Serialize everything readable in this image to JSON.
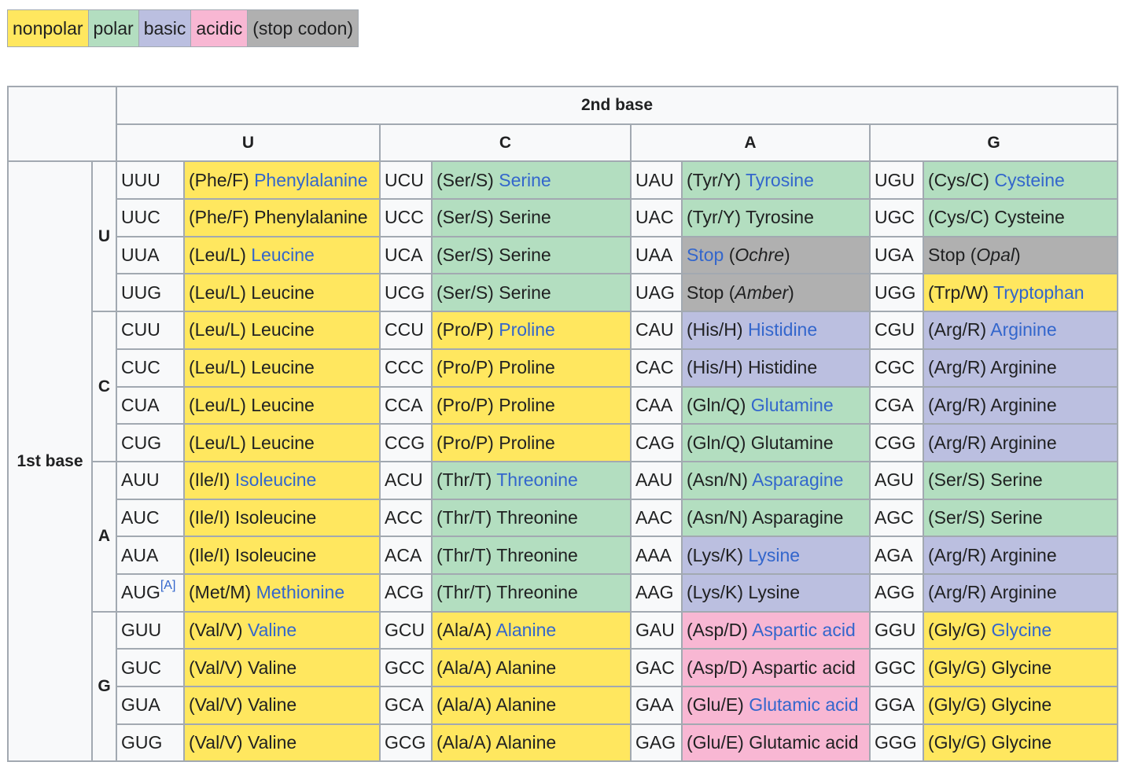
{
  "colors": {
    "nonpolar": "#ffe75f",
    "polar": "#b3dec0",
    "basic": "#bbbfe0",
    "acidic": "#f8b7d3",
    "stop": "#b0b0b0",
    "header_bg": "#f8f9fa",
    "border": "#a2a9b1",
    "link": "#3366cc"
  },
  "legend": [
    {
      "label": "nonpolar",
      "class": "nonpolar"
    },
    {
      "label": "polar",
      "class": "polar"
    },
    {
      "label": "basic",
      "class": "basic"
    },
    {
      "label": "acidic",
      "class": "acidic"
    },
    {
      "label": "(stop codon)",
      "class": "stop"
    }
  ],
  "table": {
    "second_base_label": "2nd base",
    "first_base_label": "1st base",
    "second_bases": [
      "U",
      "C",
      "A",
      "G"
    ],
    "first_bases": [
      "U",
      "C",
      "A",
      "G"
    ],
    "rows": [
      [
        [
          "UUU",
          "(Phe/F) ",
          "Phenylalanine",
          true,
          "nonpolar"
        ],
        [
          "UCU",
          "(Ser/S) ",
          "Serine",
          true,
          "polar"
        ],
        [
          "UAU",
          "(Tyr/Y) ",
          "Tyrosine",
          true,
          "polar"
        ],
        [
          "UGU",
          "(Cys/C) ",
          "Cysteine",
          true,
          "polar"
        ]
      ],
      [
        [
          "UUC",
          "(Phe/F) ",
          "Phenylalanine",
          false,
          "nonpolar"
        ],
        [
          "UCC",
          "(Ser/S) ",
          "Serine",
          false,
          "polar"
        ],
        [
          "UAC",
          "(Tyr/Y) ",
          "Tyrosine",
          false,
          "polar"
        ],
        [
          "UGC",
          "(Cys/C) ",
          "Cysteine",
          false,
          "polar"
        ]
      ],
      [
        [
          "UUA",
          "(Leu/L) ",
          "Leucine",
          true,
          "nonpolar"
        ],
        [
          "UCA",
          "(Ser/S) ",
          "Serine",
          false,
          "polar"
        ],
        [
          "UAA",
          "",
          "Stop",
          true,
          "stop",
          "Ochre"
        ],
        [
          "UGA",
          "",
          "Stop",
          false,
          "stop",
          "Opal"
        ]
      ],
      [
        [
          "UUG",
          "(Leu/L) ",
          "Leucine",
          false,
          "nonpolar"
        ],
        [
          "UCG",
          "(Ser/S) ",
          "Serine",
          false,
          "polar"
        ],
        [
          "UAG",
          "",
          "Stop",
          false,
          "stop",
          "Amber"
        ],
        [
          "UGG",
          "(Trp/W) ",
          "Tryptophan",
          true,
          "nonpolar"
        ]
      ],
      [
        [
          "CUU",
          "(Leu/L) ",
          "Leucine",
          false,
          "nonpolar"
        ],
        [
          "CCU",
          "(Pro/P) ",
          "Proline",
          true,
          "nonpolar"
        ],
        [
          "CAU",
          "(His/H) ",
          "Histidine",
          true,
          "basic"
        ],
        [
          "CGU",
          "(Arg/R) ",
          "Arginine",
          true,
          "basic"
        ]
      ],
      [
        [
          "CUC",
          "(Leu/L) ",
          "Leucine",
          false,
          "nonpolar"
        ],
        [
          "CCC",
          "(Pro/P) ",
          "Proline",
          false,
          "nonpolar"
        ],
        [
          "CAC",
          "(His/H) ",
          "Histidine",
          false,
          "basic"
        ],
        [
          "CGC",
          "(Arg/R) ",
          "Arginine",
          false,
          "basic"
        ]
      ],
      [
        [
          "CUA",
          "(Leu/L) ",
          "Leucine",
          false,
          "nonpolar"
        ],
        [
          "CCA",
          "(Pro/P) ",
          "Proline",
          false,
          "nonpolar"
        ],
        [
          "CAA",
          "(Gln/Q) ",
          "Glutamine",
          true,
          "polar"
        ],
        [
          "CGA",
          "(Arg/R) ",
          "Arginine",
          false,
          "basic"
        ]
      ],
      [
        [
          "CUG",
          "(Leu/L) ",
          "Leucine",
          false,
          "nonpolar"
        ],
        [
          "CCG",
          "(Pro/P) ",
          "Proline",
          false,
          "nonpolar"
        ],
        [
          "CAG",
          "(Gln/Q) ",
          "Glutamine",
          false,
          "polar"
        ],
        [
          "CGG",
          "(Arg/R) ",
          "Arginine",
          false,
          "basic"
        ]
      ],
      [
        [
          "AUU",
          "(Ile/I) ",
          "Isoleucine",
          true,
          "nonpolar"
        ],
        [
          "ACU",
          "(Thr/T) ",
          "Threonine",
          true,
          "polar"
        ],
        [
          "AAU",
          "(Asn/N) ",
          "Asparagine",
          true,
          "polar"
        ],
        [
          "AGU",
          "(Ser/S) ",
          "Serine",
          false,
          "polar"
        ]
      ],
      [
        [
          "AUC",
          "(Ile/I) ",
          "Isoleucine",
          false,
          "nonpolar"
        ],
        [
          "ACC",
          "(Thr/T) ",
          "Threonine",
          false,
          "polar"
        ],
        [
          "AAC",
          "(Asn/N) ",
          "Asparagine",
          false,
          "polar"
        ],
        [
          "AGC",
          "(Ser/S) ",
          "Serine",
          false,
          "polar"
        ]
      ],
      [
        [
          "AUA",
          "(Ile/I) ",
          "Isoleucine",
          false,
          "nonpolar"
        ],
        [
          "ACA",
          "(Thr/T) ",
          "Threonine",
          false,
          "polar"
        ],
        [
          "AAA",
          "(Lys/K) ",
          "Lysine",
          true,
          "basic"
        ],
        [
          "AGA",
          "(Arg/R) ",
          "Arginine",
          false,
          "basic"
        ]
      ],
      [
        [
          "AUG",
          "(Met/M) ",
          "Methionine",
          true,
          "nonpolar",
          null,
          "[A]"
        ],
        [
          "ACG",
          "(Thr/T) ",
          "Threonine",
          false,
          "polar"
        ],
        [
          "AAG",
          "(Lys/K) ",
          "Lysine",
          false,
          "basic"
        ],
        [
          "AGG",
          "(Arg/R) ",
          "Arginine",
          false,
          "basic"
        ]
      ],
      [
        [
          "GUU",
          "(Val/V) ",
          "Valine",
          true,
          "nonpolar"
        ],
        [
          "GCU",
          "(Ala/A) ",
          "Alanine",
          true,
          "nonpolar"
        ],
        [
          "GAU",
          "(Asp/D) ",
          "Aspartic acid",
          true,
          "acidic"
        ],
        [
          "GGU",
          "(Gly/G) ",
          "Glycine",
          true,
          "nonpolar"
        ]
      ],
      [
        [
          "GUC",
          "(Val/V) ",
          "Valine",
          false,
          "nonpolar"
        ],
        [
          "GCC",
          "(Ala/A) ",
          "Alanine",
          false,
          "nonpolar"
        ],
        [
          "GAC",
          "(Asp/D) ",
          "Aspartic acid",
          false,
          "acidic"
        ],
        [
          "GGC",
          "(Gly/G) ",
          "Glycine",
          false,
          "nonpolar"
        ]
      ],
      [
        [
          "GUA",
          "(Val/V) ",
          "Valine",
          false,
          "nonpolar"
        ],
        [
          "GCA",
          "(Ala/A) ",
          "Alanine",
          false,
          "nonpolar"
        ],
        [
          "GAA",
          "(Glu/E) ",
          "Glutamic acid",
          true,
          "acidic"
        ],
        [
          "GGA",
          "(Gly/G) ",
          "Glycine",
          false,
          "nonpolar"
        ]
      ],
      [
        [
          "GUG",
          "(Val/V) ",
          "Valine",
          false,
          "nonpolar"
        ],
        [
          "GCG",
          "(Ala/A) ",
          "Alanine",
          false,
          "nonpolar"
        ],
        [
          "GAG",
          "(Glu/E) ",
          "Glutamic acid",
          false,
          "acidic"
        ],
        [
          "GGG",
          "(Gly/G) ",
          "Glycine",
          false,
          "nonpolar"
        ]
      ]
    ]
  }
}
